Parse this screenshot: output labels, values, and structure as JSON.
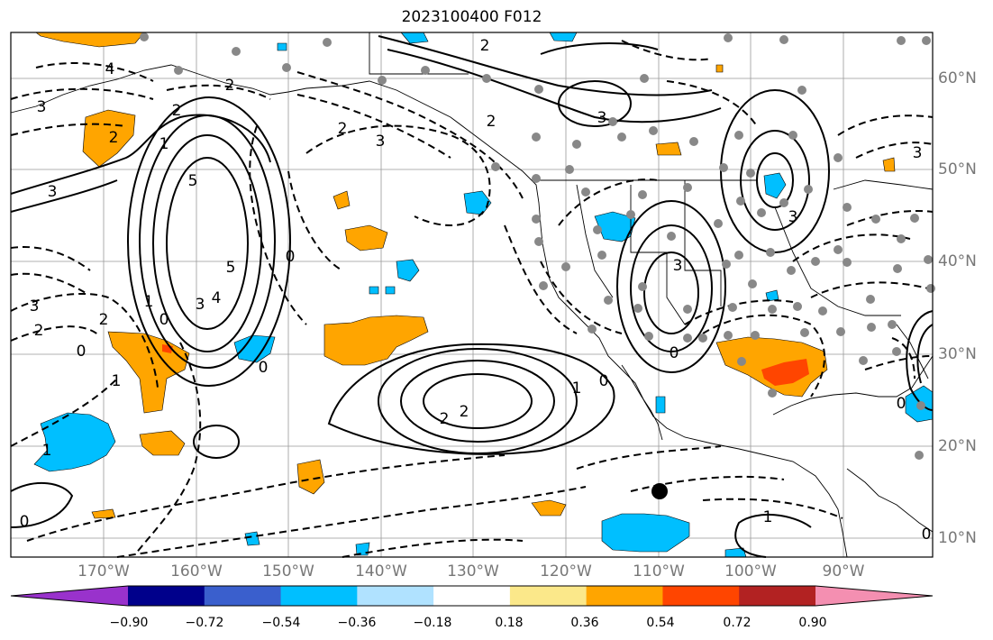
{
  "title": "2023100400 F012",
  "lon_labels": [
    "170°W",
    "160°W",
    "150°W",
    "140°W",
    "130°W",
    "120°W",
    "110°W",
    "100°W",
    "90°W"
  ],
  "lat_labels": [
    "60°N",
    "50°N",
    "40°N",
    "30°N",
    "20°N",
    "10°N"
  ],
  "colorbar": {
    "tick_labels": [
      "−0.90",
      "−0.72",
      "−0.54",
      "−0.36",
      "−0.18",
      "0.18",
      "0.36",
      "0.54",
      "0.72",
      "0.90"
    ],
    "colors": [
      "#9932cc",
      "#00008b",
      "#3a5fcd",
      "#00bfff",
      "#b0e2ff",
      "#ffffff",
      "#fbe88a",
      "#ffa500",
      "#ff4500",
      "#b22222",
      "#f48fb1"
    ]
  },
  "contour_labels": [
    "2",
    "4",
    "3",
    "2",
    "2",
    "3",
    "3",
    "2",
    "2",
    "1",
    "2",
    "3",
    "5",
    "5",
    "3",
    "4",
    "1",
    "2",
    "0",
    "3",
    "2",
    "1",
    "0",
    "1",
    "0",
    "2",
    "2",
    "1",
    "0",
    "0",
    "1",
    "3",
    "3",
    "0",
    "0",
    "0",
    "0",
    "3"
  ],
  "colors": {
    "positive_shade": "#ffa500",
    "negative_shade": "#00bfff",
    "strong_positive": "#ff4500",
    "contour": "#000000",
    "grid": "#999999",
    "coast": "#000000"
  }
}
